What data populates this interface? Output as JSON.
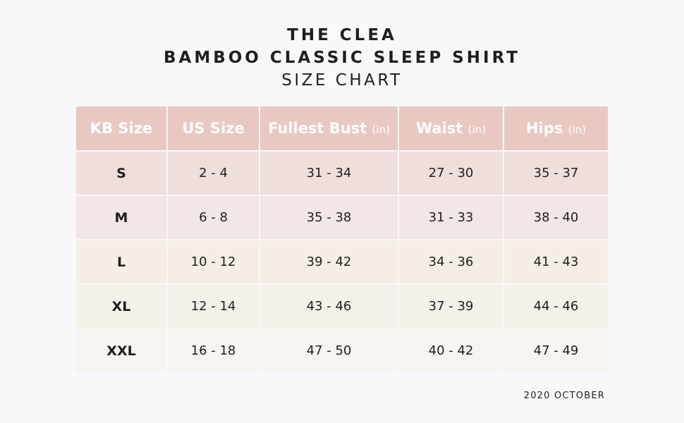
{
  "header": {
    "line1": "THE CLEA",
    "line2": "BAMBOO CLASSIC SLEEP SHIRT",
    "line3": "SIZE CHART"
  },
  "table": {
    "columns": [
      {
        "label": "KB Size",
        "unit": ""
      },
      {
        "label": "US Size",
        "unit": ""
      },
      {
        "label": "Fullest Bust",
        "unit": "(in)"
      },
      {
        "label": "Waist",
        "unit": "(in)"
      },
      {
        "label": "Hips",
        "unit": "(in)"
      }
    ],
    "rows": [
      {
        "kb": "S",
        "us": "2 - 4",
        "bust": "31 - 34",
        "waist": "27 - 30",
        "hips": "35 - 37",
        "bg": "#f0dedd"
      },
      {
        "kb": "M",
        "us": "6 - 8",
        "bust": "35 - 38",
        "waist": "31 - 33",
        "hips": "38 - 40",
        "bg": "#f3e6e6"
      },
      {
        "kb": "L",
        "us": "10 - 12",
        "bust": "39 - 42",
        "waist": "34 - 36",
        "hips": "41 - 43",
        "bg": "#f5eee6"
      },
      {
        "kb": "XL",
        "us": "12 - 14",
        "bust": "43 - 46",
        "waist": "37 - 39",
        "hips": "44 - 46",
        "bg": "#f5f0ea"
      },
      {
        "kb": "XXL",
        "us": "16 - 18",
        "bust": "47 - 50",
        "waist": "40 - 42",
        "hips": "47 - 49",
        "bg": "#f6f3f0"
      }
    ],
    "header_color": "#e9c8c2"
  },
  "footer": {
    "date": "2020 OCTOBER"
  }
}
